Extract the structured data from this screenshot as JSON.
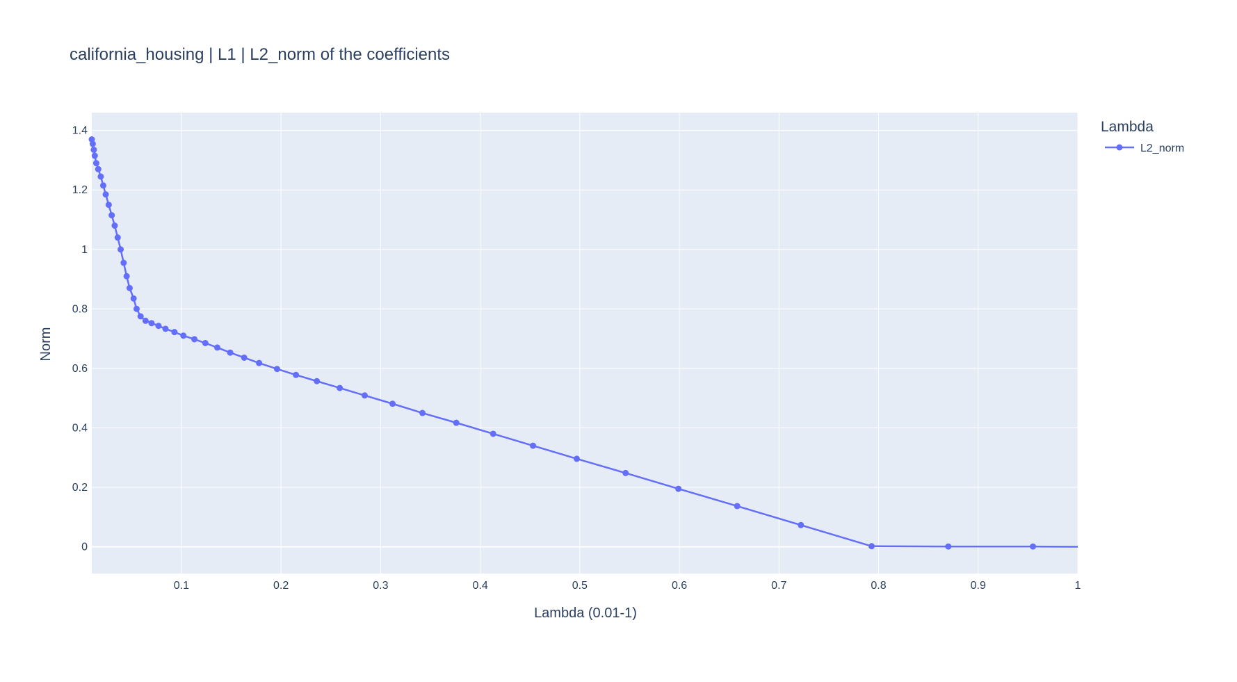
{
  "chart_data": {
    "type": "line",
    "title": "california_housing | L1 | L2_norm of the coefficients",
    "xlabel": "Lambda (0.01-1)",
    "ylabel": "Norm",
    "xlim": [
      0.01,
      1.0
    ],
    "ylim": [
      -0.09,
      1.46
    ],
    "x_ticks": [
      0.1,
      0.2,
      0.3,
      0.4,
      0.5,
      0.6,
      0.7,
      0.8,
      0.9,
      1
    ],
    "x_tick_labels": [
      "0.1",
      "0.2",
      "0.3",
      "0.4",
      "0.5",
      "0.6",
      "0.7",
      "0.8",
      "0.9",
      "1"
    ],
    "y_ticks": [
      0,
      0.2,
      0.4,
      0.6,
      0.8,
      1.0,
      1.2,
      1.4
    ],
    "y_tick_labels": [
      "0",
      "0.2",
      "0.4",
      "0.6",
      "0.8",
      "1",
      "1.2",
      "1.4"
    ],
    "grid": true,
    "legend": {
      "title": "Lambda",
      "placement": "top-right"
    },
    "colors": {
      "series": "#636efa",
      "plot_bg": "#e5ecf6",
      "grid": "#ffffff",
      "text": "#2a3f5f"
    },
    "series": [
      {
        "name": "L2_norm",
        "mode": "lines+markers",
        "x": [
          0.01,
          0.011,
          0.012,
          0.013,
          0.0145,
          0.0165,
          0.019,
          0.0215,
          0.024,
          0.027,
          0.03,
          0.033,
          0.036,
          0.039,
          0.042,
          0.045,
          0.048,
          0.052,
          0.055,
          0.059,
          0.064,
          0.07,
          0.077,
          0.084,
          0.093,
          0.102,
          0.113,
          0.124,
          0.136,
          0.149,
          0.163,
          0.178,
          0.196,
          0.215,
          0.236,
          0.259,
          0.284,
          0.312,
          0.342,
          0.376,
          0.413,
          0.453,
          0.497,
          0.546,
          0.599,
          0.658,
          0.722,
          0.793,
          0.87,
          0.955,
          1.0
        ],
        "y": [
          1.37,
          1.355,
          1.335,
          1.315,
          1.29,
          1.27,
          1.245,
          1.215,
          1.185,
          1.15,
          1.115,
          1.08,
          1.04,
          1.0,
          0.955,
          0.91,
          0.87,
          0.835,
          0.8,
          0.775,
          0.76,
          0.752,
          0.743,
          0.733,
          0.722,
          0.71,
          0.698,
          0.685,
          0.67,
          0.653,
          0.636,
          0.618,
          0.598,
          0.578,
          0.557,
          0.534,
          0.509,
          0.481,
          0.45,
          0.417,
          0.38,
          0.34,
          0.296,
          0.248,
          0.195,
          0.137,
          0.073,
          0.002,
          0.001,
          0.001,
          0.0
        ]
      }
    ]
  }
}
